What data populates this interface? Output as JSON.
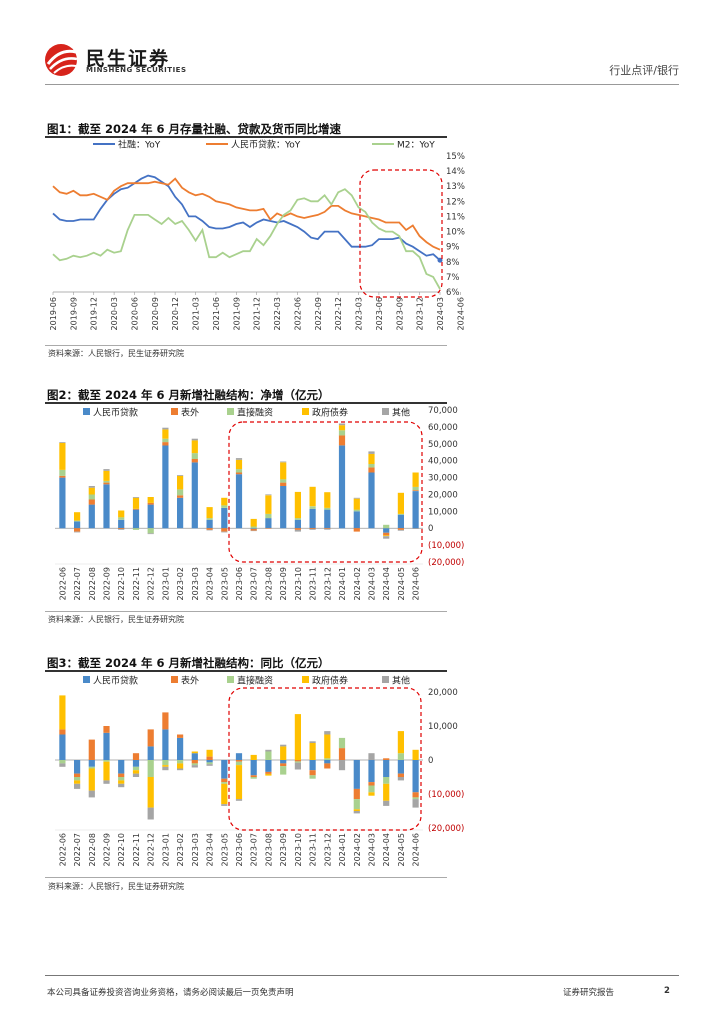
{
  "header": {
    "brand_cn": "民生证券",
    "brand_en": "MINSHENG SECURITIES",
    "section": "行业点评/银行",
    "logo_icon": "minsheng-logo-icon"
  },
  "footer": {
    "disclaimer": "本公司具备证券投资咨询业务资格，请务必阅读最后一页免责声明",
    "report_type": "证券研究报告",
    "page_number": "2"
  },
  "colors": {
    "blue": "#4a8ac9",
    "orange": "#ed7d31",
    "green": "#a9d18e",
    "gold": "#ffc000",
    "gray": "#a5a5a5",
    "line_blue": "#4472c4",
    "line_orange": "#ed7d31",
    "line_green": "#a9d18e",
    "highlight": "#e00000"
  },
  "chart_data": [
    {
      "type": "line",
      "title": "图1：截至 2024 年 6 月存量社融、贷款及货币同比增速",
      "source": "资料来源：人民银行，民生证券研究院",
      "x_ticks": [
        "2019-06",
        "2019-09",
        "2019-12",
        "2020-03",
        "2020-06",
        "2020-09",
        "2020-12",
        "2021-03",
        "2021-06",
        "2021-09",
        "2021-12",
        "2022-03",
        "2022-06",
        "2022-09",
        "2022-12",
        "2023-03",
        "2023-06",
        "2023-09",
        "2023-12",
        "2024-03",
        "2024-06"
      ],
      "y_ticks": [
        "15%",
        "14%",
        "13%",
        "12%",
        "11%",
        "10%",
        "9%",
        "8%",
        "7%",
        "6%"
      ],
      "ylim": [
        6,
        15
      ],
      "series": [
        {
          "name": "社融：YoY",
          "values": [
            11.2,
            10.8,
            10.7,
            10.7,
            10.8,
            10.8,
            10.8,
            11.5,
            12.1,
            12.5,
            12.8,
            12.9,
            13.2,
            13.5,
            13.7,
            13.6,
            13.3,
            13.0,
            12.3,
            11.8,
            11.0,
            11.0,
            10.7,
            10.3,
            10.2,
            10.2,
            10.3,
            10.5,
            10.6,
            10.3,
            10.6,
            10.8,
            10.7,
            10.6,
            10.7,
            10.5,
            10.3,
            10.0,
            9.6,
            9.5,
            10.0,
            10.0,
            10.0,
            9.5,
            9.0,
            9.0,
            9.0,
            9.1,
            9.5,
            9.5,
            9.5,
            9.6,
            9.2,
            9.0,
            8.7,
            8.4,
            8.5,
            8.1
          ],
          "color": "#4472c4"
        },
        {
          "name": "人民币贷款：YoY",
          "values": [
            13.0,
            12.6,
            12.5,
            12.7,
            12.4,
            12.4,
            12.5,
            12.3,
            12.1,
            12.7,
            13.0,
            13.2,
            13.2,
            13.2,
            13.2,
            13.3,
            13.2,
            13.1,
            13.5,
            12.9,
            12.6,
            12.4,
            12.5,
            12.3,
            12.0,
            11.9,
            11.8,
            11.6,
            11.5,
            11.4,
            11.4,
            11.5,
            10.8,
            11.2,
            11.0,
            11.2,
            11.0,
            10.9,
            11.0,
            11.1,
            11.3,
            11.7,
            11.7,
            11.4,
            11.2,
            11.1,
            11.0,
            10.9,
            10.8,
            10.6,
            10.6,
            10.6,
            10.1,
            10.4,
            9.7,
            9.3,
            9.0,
            8.8
          ],
          "color": "#ed7d31"
        },
        {
          "name": "M2：YoY",
          "values": [
            8.5,
            8.1,
            8.2,
            8.4,
            8.3,
            8.4,
            8.6,
            8.4,
            8.8,
            8.6,
            8.7,
            10.1,
            11.1,
            11.1,
            11.1,
            10.8,
            10.5,
            10.9,
            10.5,
            10.7,
            10.1,
            9.4,
            10.1,
            8.3,
            8.3,
            8.6,
            8.3,
            8.5,
            8.7,
            8.7,
            9.5,
            9.1,
            9.7,
            10.5,
            11.1,
            11.4,
            12.1,
            12.2,
            12.0,
            12.0,
            12.4,
            11.8,
            12.6,
            12.8,
            12.4,
            11.6,
            11.3,
            10.6,
            10.2,
            10.0,
            10.0,
            9.7,
            8.7,
            8.7,
            8.3,
            7.2,
            7.0,
            6.2
          ],
          "color": "#a9d18e"
        }
      ]
    },
    {
      "type": "bar",
      "stacked": true,
      "title": "图2：截至 2024 年 6 月新增社融结构：净增（亿元）",
      "source": "资料来源：人民银行，民生证券研究院",
      "categories": [
        "2022-06",
        "2022-07",
        "2022-08",
        "2022-09",
        "2022-10",
        "2022-11",
        "2022-12",
        "2023-01",
        "2023-02",
        "2023-03",
        "2023-04",
        "2023-05",
        "2023-06",
        "2023-07",
        "2023-08",
        "2023-09",
        "2023-10",
        "2023-11",
        "2023-12",
        "2024-01",
        "2024-02",
        "2024-03",
        "2024-04",
        "2024-05",
        "2024-06"
      ],
      "y_ticks": [
        "70,000",
        "60,000",
        "50,000",
        "40,000",
        "30,000",
        "20,000",
        "10,000",
        "0",
        "(10,000)",
        "(20,000)"
      ],
      "ylim": [
        -20000,
        70000
      ],
      "series": [
        {
          "name": "人民币贷款",
          "color": "#4a8ac9",
          "values": [
            30000,
            4000,
            14000,
            26000,
            5000,
            11000,
            14000,
            49000,
            18000,
            39000,
            5000,
            12000,
            32000,
            -400,
            6000,
            25000,
            5000,
            11500,
            11000,
            49000,
            10000,
            33000,
            -2700,
            8000,
            22000
          ]
        },
        {
          "name": "表外",
          "color": "#ed7d31",
          "values": [
            1000,
            -2000,
            3000,
            1000,
            -500,
            500,
            1000,
            2000,
            1500,
            2000,
            -1000,
            -2000,
            1000,
            -1000,
            -300,
            2000,
            -1000,
            -500,
            -400,
            6000,
            -2000,
            3000,
            -1500,
            -1000,
            500
          ]
        },
        {
          "name": "直接融资",
          "color": "#a9d18e",
          "values": [
            3500,
            500,
            3000,
            1000,
            1500,
            -1000,
            -3000,
            2000,
            3500,
            3500,
            1000,
            1500,
            2000,
            1000,
            2500,
            2000,
            1000,
            1500,
            1000,
            3000,
            1000,
            2000,
            2000,
            500,
            2000
          ]
        },
        {
          "name": "政府债券",
          "color": "#ffc000",
          "values": [
            16000,
            5000,
            4000,
            6000,
            4000,
            6500,
            3500,
            5500,
            8000,
            7500,
            6500,
            4500,
            5500,
            4500,
            11000,
            10000,
            15500,
            11500,
            9300,
            3000,
            6500,
            6000,
            -500,
            12500,
            8500
          ]
        },
        {
          "name": "其他",
          "color": "#a5a5a5",
          "values": [
            500,
            -500,
            1000,
            1000,
            -500,
            500,
            -500,
            1000,
            500,
            1000,
            -300,
            -500,
            1000,
            -300,
            500,
            500,
            -1000,
            -500,
            -500,
            1000,
            500,
            1500,
            -1500,
            -500,
            -500
          ]
        }
      ]
    },
    {
      "type": "bar",
      "stacked": true,
      "title": "图3：截至 2024 年 6 月新增社融结构：同比（亿元）",
      "source": "资料来源：人民银行，民生证券研究院",
      "categories": [
        "2022-06",
        "2022-07",
        "2022-08",
        "2022-09",
        "2022-10",
        "2022-11",
        "2022-12",
        "2023-01",
        "2023-02",
        "2023-03",
        "2023-04",
        "2023-05",
        "2023-06",
        "2023-07",
        "2023-08",
        "2023-09",
        "2023-10",
        "2023-11",
        "2023-12",
        "2024-01",
        "2024-02",
        "2024-03",
        "2024-04",
        "2024-05",
        "2024-06"
      ],
      "y_ticks": [
        "20,000",
        "10,000",
        "0",
        "(10,000)",
        "(20,000)"
      ],
      "ylim": [
        -20000,
        20000
      ],
      "series": [
        {
          "name": "人民币贷款",
          "color": "#4a8ac9",
          "values": [
            7500,
            -4000,
            -2000,
            8000,
            -4000,
            -2000,
            4000,
            9000,
            6500,
            2000,
            -700,
            -5500,
            2000,
            -4500,
            -3500,
            -1000,
            0,
            -3000,
            -1000,
            0,
            -8500,
            -6500,
            -5000,
            -4000,
            -9500
          ]
        },
        {
          "name": "表外",
          "color": "#ed7d31",
          "values": [
            1500,
            -1000,
            6000,
            2000,
            -1000,
            2000,
            5000,
            5000,
            1000,
            -1000,
            1000,
            -1000,
            -500,
            -500,
            -600,
            -800,
            -400,
            -1500,
            -1500,
            3500,
            -3000,
            -1000,
            500,
            -1000,
            -1500
          ]
        },
        {
          "name": "直接融资",
          "color": "#a9d18e",
          "values": [
            -1000,
            -1000,
            -500,
            -500,
            -1000,
            -1000,
            -5000,
            -1500,
            -1000,
            -500,
            -500,
            -500,
            -1000,
            -500,
            2500,
            -2500,
            -400,
            -1000,
            500,
            3000,
            -3000,
            -2000,
            -2000,
            2000,
            -500
          ]
        },
        {
          "name": "政府债券",
          "color": "#ffc000",
          "values": [
            10000,
            -1000,
            -6500,
            -5500,
            -1000,
            -1000,
            -9000,
            -500,
            -1500,
            500,
            2000,
            -6000,
            -10000,
            1500,
            -500,
            4000,
            13500,
            5000,
            7000,
            0,
            -500,
            -1000,
            -5000,
            6500,
            3000
          ]
        },
        {
          "name": "其他",
          "color": "#a5a5a5",
          "values": [
            -1000,
            -1500,
            -2000,
            -1000,
            -1000,
            -1000,
            -3500,
            -1000,
            -500,
            -700,
            -500,
            -500,
            -500,
            0,
            500,
            500,
            -2000,
            500,
            1000,
            -3000,
            -700,
            2000,
            -1500,
            -1000,
            -2500
          ]
        }
      ]
    }
  ]
}
